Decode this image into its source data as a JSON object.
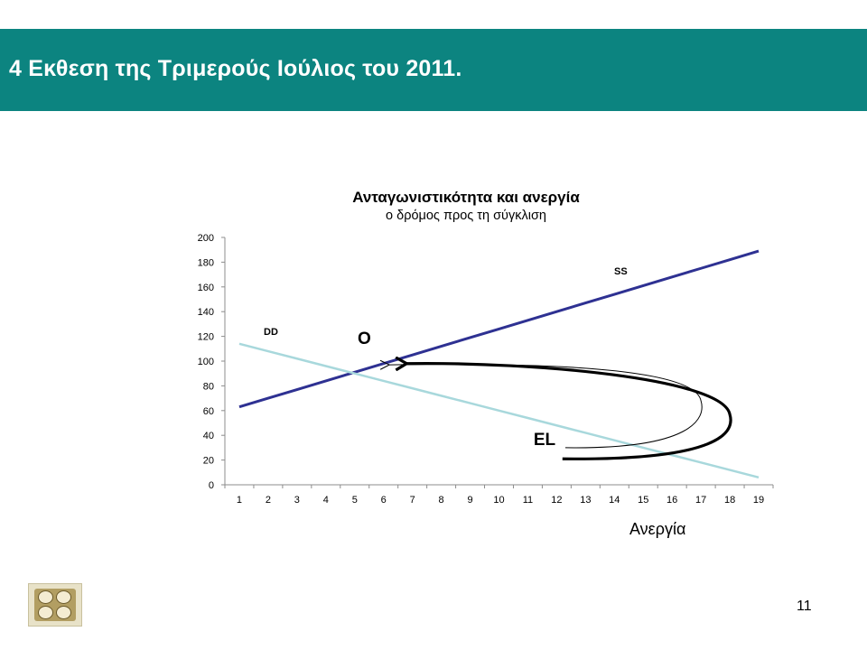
{
  "slide": {
    "title": "4 Εκθεση της Τριμερούς Ιούλιος του 2011.",
    "page_number": "11",
    "header_color": "#0c8480"
  },
  "logo": {
    "icon": "iobe-logo-icon"
  },
  "chart_data": {
    "type": "line",
    "title": "Ανταγωνιστικότητα και ανεργία",
    "subtitle": "ο δρόμος προς τη σύγκλιση",
    "xlabel": "Ανεργία",
    "ylabel": "",
    "x": [
      1,
      2,
      3,
      4,
      5,
      6,
      7,
      8,
      9,
      10,
      11,
      12,
      13,
      14,
      15,
      16,
      17,
      18,
      19
    ],
    "ylim": [
      0,
      200
    ],
    "yticks": [
      0,
      20,
      40,
      60,
      80,
      100,
      120,
      140,
      160,
      180,
      200
    ],
    "grid": false,
    "legend": "none",
    "series": [
      {
        "name": "SS",
        "color": "#2e3192",
        "values": [
          63,
          70,
          77,
          84,
          91,
          98,
          105,
          112,
          119,
          126,
          133,
          140,
          147,
          154,
          161,
          168,
          175,
          182,
          189
        ]
      },
      {
        "name": "DD",
        "color": "#a8d8dc",
        "values": [
          114,
          108,
          102,
          96,
          90,
          84,
          78,
          72,
          66,
          60,
          54,
          48,
          42,
          36,
          30,
          24,
          18,
          12,
          6
        ]
      }
    ],
    "annotations": [
      {
        "text": "O",
        "x": 5.1,
        "y": 114
      },
      {
        "text": "EL",
        "x": 11.2,
        "y": 32
      }
    ],
    "arrows": [
      {
        "type": "thick-curved",
        "color": "#000000",
        "points": [
          [
            12.2,
            21
          ],
          [
            18.0,
            57
          ],
          [
            6.8,
            98
          ]
        ]
      },
      {
        "type": "thin-curved",
        "color": "#000000",
        "points": [
          [
            12.3,
            30
          ],
          [
            17.0,
            68
          ],
          [
            6.2,
            97
          ]
        ]
      }
    ]
  }
}
